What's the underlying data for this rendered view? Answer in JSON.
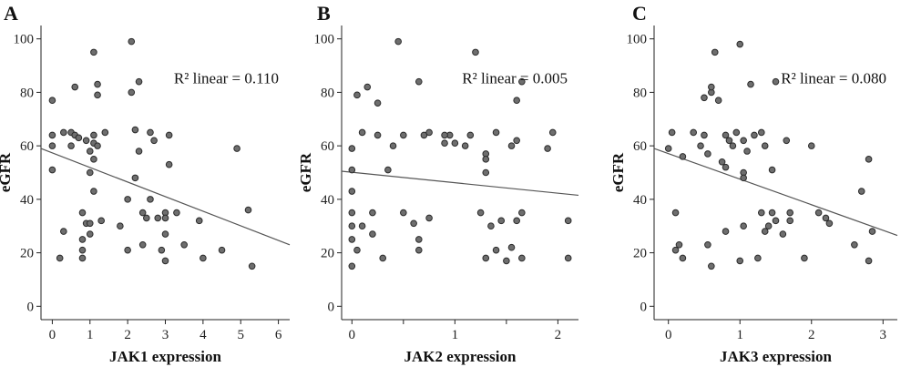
{
  "chart_data": [
    {
      "type": "scatter",
      "panel_label": "A",
      "xlabel": "JAK1 expression",
      "ylabel": "eGFR",
      "annotation": "R² linear = 0.110",
      "xlim": [
        -0.3,
        6.3
      ],
      "ylim": [
        -5,
        105
      ],
      "xticks": [
        0,
        1,
        2,
        3,
        4,
        5,
        6
      ],
      "yticks": [
        0,
        20,
        40,
        60,
        80,
        100
      ],
      "fit_line": {
        "x": [
          -0.3,
          6.3
        ],
        "y": [
          59,
          23
        ]
      },
      "points": [
        {
          "x": 0.0,
          "y": 60
        },
        {
          "x": 0.0,
          "y": 64
        },
        {
          "x": 0.0,
          "y": 77
        },
        {
          "x": 0.0,
          "y": 51
        },
        {
          "x": 0.2,
          "y": 18
        },
        {
          "x": 0.3,
          "y": 65
        },
        {
          "x": 0.3,
          "y": 28
        },
        {
          "x": 0.5,
          "y": 60
        },
        {
          "x": 0.5,
          "y": 65
        },
        {
          "x": 0.6,
          "y": 64
        },
        {
          "x": 0.6,
          "y": 82
        },
        {
          "x": 0.7,
          "y": 63
        },
        {
          "x": 0.8,
          "y": 35
        },
        {
          "x": 0.8,
          "y": 25
        },
        {
          "x": 0.8,
          "y": 21
        },
        {
          "x": 0.8,
          "y": 18
        },
        {
          "x": 0.9,
          "y": 62
        },
        {
          "x": 0.9,
          "y": 31
        },
        {
          "x": 1.0,
          "y": 58
        },
        {
          "x": 1.0,
          "y": 50
        },
        {
          "x": 1.0,
          "y": 31
        },
        {
          "x": 1.0,
          "y": 27
        },
        {
          "x": 1.1,
          "y": 95
        },
        {
          "x": 1.1,
          "y": 64
        },
        {
          "x": 1.1,
          "y": 61
        },
        {
          "x": 1.1,
          "y": 55
        },
        {
          "x": 1.1,
          "y": 43
        },
        {
          "x": 1.2,
          "y": 83
        },
        {
          "x": 1.2,
          "y": 79
        },
        {
          "x": 1.2,
          "y": 60
        },
        {
          "x": 1.3,
          "y": 32
        },
        {
          "x": 1.4,
          "y": 65
        },
        {
          "x": 1.8,
          "y": 30
        },
        {
          "x": 2.0,
          "y": 40
        },
        {
          "x": 2.0,
          "y": 21
        },
        {
          "x": 2.1,
          "y": 99
        },
        {
          "x": 2.1,
          "y": 80
        },
        {
          "x": 2.2,
          "y": 48
        },
        {
          "x": 2.2,
          "y": 66
        },
        {
          "x": 2.3,
          "y": 84
        },
        {
          "x": 2.3,
          "y": 58
        },
        {
          "x": 2.4,
          "y": 23
        },
        {
          "x": 2.4,
          "y": 35
        },
        {
          "x": 2.5,
          "y": 33
        },
        {
          "x": 2.6,
          "y": 65
        },
        {
          "x": 2.6,
          "y": 40
        },
        {
          "x": 2.7,
          "y": 62
        },
        {
          "x": 2.8,
          "y": 33
        },
        {
          "x": 2.9,
          "y": 21
        },
        {
          "x": 3.0,
          "y": 35
        },
        {
          "x": 3.0,
          "y": 33
        },
        {
          "x": 3.0,
          "y": 27
        },
        {
          "x": 3.0,
          "y": 17
        },
        {
          "x": 3.1,
          "y": 64
        },
        {
          "x": 3.1,
          "y": 53
        },
        {
          "x": 3.3,
          "y": 35
        },
        {
          "x": 3.5,
          "y": 23
        },
        {
          "x": 3.9,
          "y": 32
        },
        {
          "x": 4.0,
          "y": 18
        },
        {
          "x": 4.5,
          "y": 21
        },
        {
          "x": 4.9,
          "y": 59
        },
        {
          "x": 5.2,
          "y": 36
        },
        {
          "x": 5.3,
          "y": 15
        }
      ]
    },
    {
      "type": "scatter",
      "panel_label": "B",
      "xlabel": "JAK2 expression",
      "ylabel": "eGFR",
      "annotation": "R² linear = 0.005",
      "xlim": [
        -0.1,
        2.2
      ],
      "ylim": [
        -5,
        105
      ],
      "xticks": [
        0,
        0.5,
        1,
        1.5,
        2
      ],
      "xtick_labels": [
        "0",
        "",
        "1",
        "",
        "2"
      ],
      "yticks": [
        0,
        20,
        40,
        60,
        80,
        100
      ],
      "fit_line": {
        "x": [
          -0.1,
          2.2
        ],
        "y": [
          50.5,
          41.5
        ]
      },
      "points": [
        {
          "x": 0.0,
          "y": 59
        },
        {
          "x": 0.0,
          "y": 51
        },
        {
          "x": 0.0,
          "y": 43
        },
        {
          "x": 0.0,
          "y": 35
        },
        {
          "x": 0.0,
          "y": 30
        },
        {
          "x": 0.0,
          "y": 25
        },
        {
          "x": 0.0,
          "y": 15
        },
        {
          "x": 0.05,
          "y": 79
        },
        {
          "x": 0.05,
          "y": 21
        },
        {
          "x": 0.1,
          "y": 65
        },
        {
          "x": 0.1,
          "y": 30
        },
        {
          "x": 0.15,
          "y": 82
        },
        {
          "x": 0.2,
          "y": 35
        },
        {
          "x": 0.2,
          "y": 27
        },
        {
          "x": 0.25,
          "y": 76
        },
        {
          "x": 0.25,
          "y": 64
        },
        {
          "x": 0.3,
          "y": 18
        },
        {
          "x": 0.35,
          "y": 51
        },
        {
          "x": 0.4,
          "y": 60
        },
        {
          "x": 0.45,
          "y": 99
        },
        {
          "x": 0.5,
          "y": 64
        },
        {
          "x": 0.5,
          "y": 35
        },
        {
          "x": 0.6,
          "y": 31
        },
        {
          "x": 0.65,
          "y": 84
        },
        {
          "x": 0.65,
          "y": 25
        },
        {
          "x": 0.65,
          "y": 21
        },
        {
          "x": 0.7,
          "y": 64
        },
        {
          "x": 0.75,
          "y": 65
        },
        {
          "x": 0.75,
          "y": 33
        },
        {
          "x": 0.9,
          "y": 61
        },
        {
          "x": 0.95,
          "y": 64
        },
        {
          "x": 1.1,
          "y": 60
        },
        {
          "x": 1.15,
          "y": 64
        },
        {
          "x": 1.2,
          "y": 95
        },
        {
          "x": 1.25,
          "y": 35
        },
        {
          "x": 1.3,
          "y": 57
        },
        {
          "x": 1.3,
          "y": 55
        },
        {
          "x": 1.3,
          "y": 50
        },
        {
          "x": 1.3,
          "y": 18
        },
        {
          "x": 1.35,
          "y": 30
        },
        {
          "x": 1.4,
          "y": 65
        },
        {
          "x": 1.4,
          "y": 21
        },
        {
          "x": 1.45,
          "y": 32
        },
        {
          "x": 1.5,
          "y": 17
        },
        {
          "x": 1.55,
          "y": 60
        },
        {
          "x": 1.55,
          "y": 22
        },
        {
          "x": 1.6,
          "y": 77
        },
        {
          "x": 1.6,
          "y": 32
        },
        {
          "x": 1.65,
          "y": 84
        },
        {
          "x": 1.65,
          "y": 35
        },
        {
          "x": 1.65,
          "y": 18
        },
        {
          "x": 1.9,
          "y": 59
        },
        {
          "x": 2.1,
          "y": 32
        },
        {
          "x": 2.1,
          "y": 18
        },
        {
          "x": 1.95,
          "y": 65
        },
        {
          "x": 1.6,
          "y": 62
        },
        {
          "x": 0.9,
          "y": 64
        },
        {
          "x": 1.0,
          "y": 61
        }
      ]
    },
    {
      "type": "scatter",
      "panel_label": "C",
      "xlabel": "JAK3 expression",
      "ylabel": "eGFR",
      "annotation": "R² linear = 0.080",
      "xlim": [
        -0.2,
        3.2
      ],
      "ylim": [
        -5,
        105
      ],
      "xticks": [
        0,
        1,
        2,
        3
      ],
      "yticks": [
        0,
        20,
        40,
        60,
        80,
        100
      ],
      "fit_line": {
        "x": [
          -0.2,
          3.2
        ],
        "y": [
          59,
          26.5
        ]
      },
      "points": [
        {
          "x": 0.0,
          "y": 59
        },
        {
          "x": 0.05,
          "y": 65
        },
        {
          "x": 0.1,
          "y": 21
        },
        {
          "x": 0.1,
          "y": 35
        },
        {
          "x": 0.15,
          "y": 23
        },
        {
          "x": 0.2,
          "y": 56
        },
        {
          "x": 0.2,
          "y": 18
        },
        {
          "x": 0.35,
          "y": 65
        },
        {
          "x": 0.45,
          "y": 60
        },
        {
          "x": 0.5,
          "y": 64
        },
        {
          "x": 0.5,
          "y": 78
        },
        {
          "x": 0.55,
          "y": 57
        },
        {
          "x": 0.55,
          "y": 23
        },
        {
          "x": 0.6,
          "y": 80
        },
        {
          "x": 0.6,
          "y": 82
        },
        {
          "x": 0.6,
          "y": 15
        },
        {
          "x": 0.65,
          "y": 95
        },
        {
          "x": 0.7,
          "y": 77
        },
        {
          "x": 0.8,
          "y": 64
        },
        {
          "x": 0.8,
          "y": 52
        },
        {
          "x": 0.8,
          "y": 28
        },
        {
          "x": 0.85,
          "y": 62
        },
        {
          "x": 0.9,
          "y": 60
        },
        {
          "x": 0.95,
          "y": 65
        },
        {
          "x": 1.0,
          "y": 98
        },
        {
          "x": 1.05,
          "y": 62
        },
        {
          "x": 1.05,
          "y": 50
        },
        {
          "x": 1.05,
          "y": 48
        },
        {
          "x": 1.05,
          "y": 30
        },
        {
          "x": 1.1,
          "y": 58
        },
        {
          "x": 1.15,
          "y": 83
        },
        {
          "x": 1.2,
          "y": 64
        },
        {
          "x": 1.25,
          "y": 18
        },
        {
          "x": 1.3,
          "y": 65
        },
        {
          "x": 1.3,
          "y": 35
        },
        {
          "x": 1.35,
          "y": 60
        },
        {
          "x": 1.35,
          "y": 28
        },
        {
          "x": 1.4,
          "y": 30
        },
        {
          "x": 1.45,
          "y": 51
        },
        {
          "x": 1.45,
          "y": 35
        },
        {
          "x": 1.5,
          "y": 84
        },
        {
          "x": 1.5,
          "y": 32
        },
        {
          "x": 1.6,
          "y": 27
        },
        {
          "x": 1.65,
          "y": 62
        },
        {
          "x": 1.7,
          "y": 35
        },
        {
          "x": 1.7,
          "y": 32
        },
        {
          "x": 1.9,
          "y": 18
        },
        {
          "x": 2.0,
          "y": 60
        },
        {
          "x": 2.1,
          "y": 35
        },
        {
          "x": 2.2,
          "y": 33
        },
        {
          "x": 2.25,
          "y": 31
        },
        {
          "x": 2.6,
          "y": 23
        },
        {
          "x": 2.7,
          "y": 43
        },
        {
          "x": 2.8,
          "y": 55
        },
        {
          "x": 2.8,
          "y": 17
        },
        {
          "x": 2.85,
          "y": 28
        },
        {
          "x": 1.0,
          "y": 17
        },
        {
          "x": 0.75,
          "y": 54
        }
      ]
    }
  ]
}
